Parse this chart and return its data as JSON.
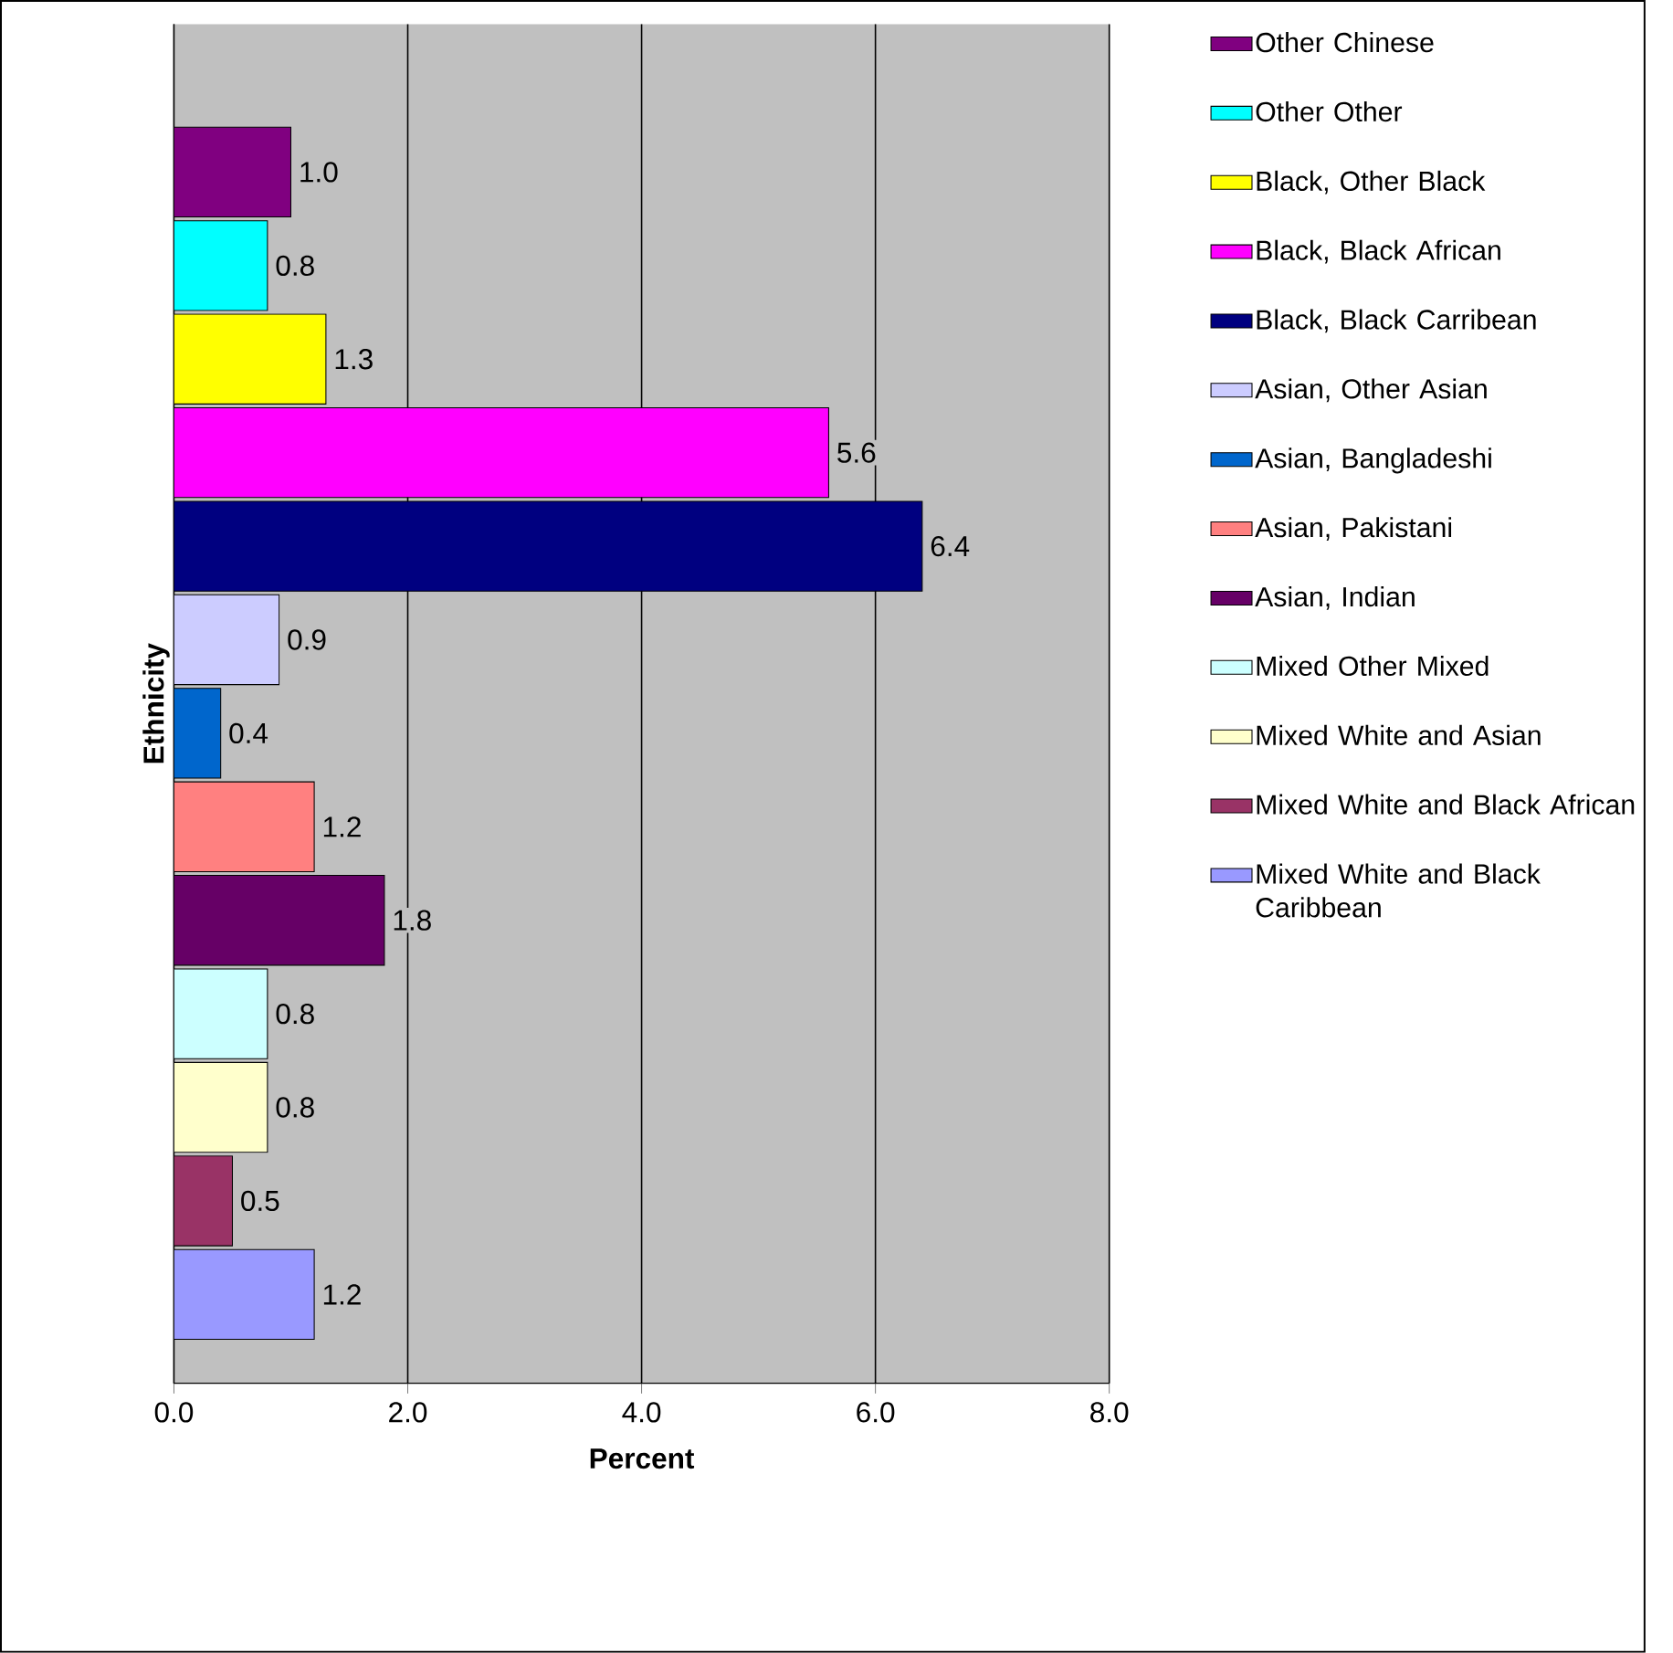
{
  "chart_data": {
    "type": "bar",
    "orientation": "horizontal",
    "xlabel": "Percent",
    "ylabel": "Ethnicity",
    "categories": [
      null
    ],
    "series": [
      {
        "name": "Other Chinese",
        "color": "#800080",
        "values": [
          1.0
        ],
        "value_labels": [
          "1.0"
        ]
      },
      {
        "name": "Other Other",
        "color": "#00ffff",
        "values": [
          0.8
        ],
        "value_labels": [
          "0.8"
        ]
      },
      {
        "name": "Black, Other Black",
        "color": "#ffff00",
        "values": [
          1.3
        ],
        "value_labels": [
          "1.3"
        ]
      },
      {
        "name": "Black, Black African",
        "color": "#ff00ff",
        "values": [
          5.6
        ],
        "value_labels": [
          "5.6"
        ]
      },
      {
        "name": "Black, Black Carribean",
        "color": "#000080",
        "values": [
          6.4
        ],
        "value_labels": [
          "6.4"
        ]
      },
      {
        "name": "Asian, Other Asian",
        "color": "#ccccff",
        "values": [
          0.9
        ],
        "value_labels": [
          "0.9"
        ]
      },
      {
        "name": "Asian, Bangladeshi",
        "color": "#0066cc",
        "values": [
          0.4
        ],
        "value_labels": [
          "0.4"
        ]
      },
      {
        "name": "Asian, Pakistani",
        "color": "#ff8080",
        "values": [
          1.2
        ],
        "value_labels": [
          "1.2"
        ]
      },
      {
        "name": "Asian, Indian",
        "color": "#660066",
        "values": [
          1.8
        ],
        "value_labels": [
          "1.8"
        ]
      },
      {
        "name": "Mixed Other Mixed",
        "color": "#ccffff",
        "values": [
          0.8
        ],
        "value_labels": [
          "0.8"
        ]
      },
      {
        "name": "Mixed White and Asian",
        "color": "#ffffcc",
        "values": [
          0.8
        ],
        "value_labels": [
          "0.8"
        ]
      },
      {
        "name": "Mixed White and Black African",
        "color": "#993366",
        "values": [
          0.5
        ],
        "value_labels": [
          "0.5"
        ]
      },
      {
        "name": "Mixed White and Black Caribbean",
        "color": "#9999ff",
        "values": [
          1.2
        ],
        "value_labels": [
          "1.2"
        ]
      }
    ],
    "xlim": [
      0,
      8
    ],
    "xticks": [
      {
        "value": 0,
        "label": "0.0"
      },
      {
        "value": 2,
        "label": "2.0"
      },
      {
        "value": 4,
        "label": "4.0"
      },
      {
        "value": 6,
        "label": "6.0"
      },
      {
        "value": 8,
        "label": "8.0"
      }
    ],
    "grid": "x",
    "legend": "right"
  }
}
